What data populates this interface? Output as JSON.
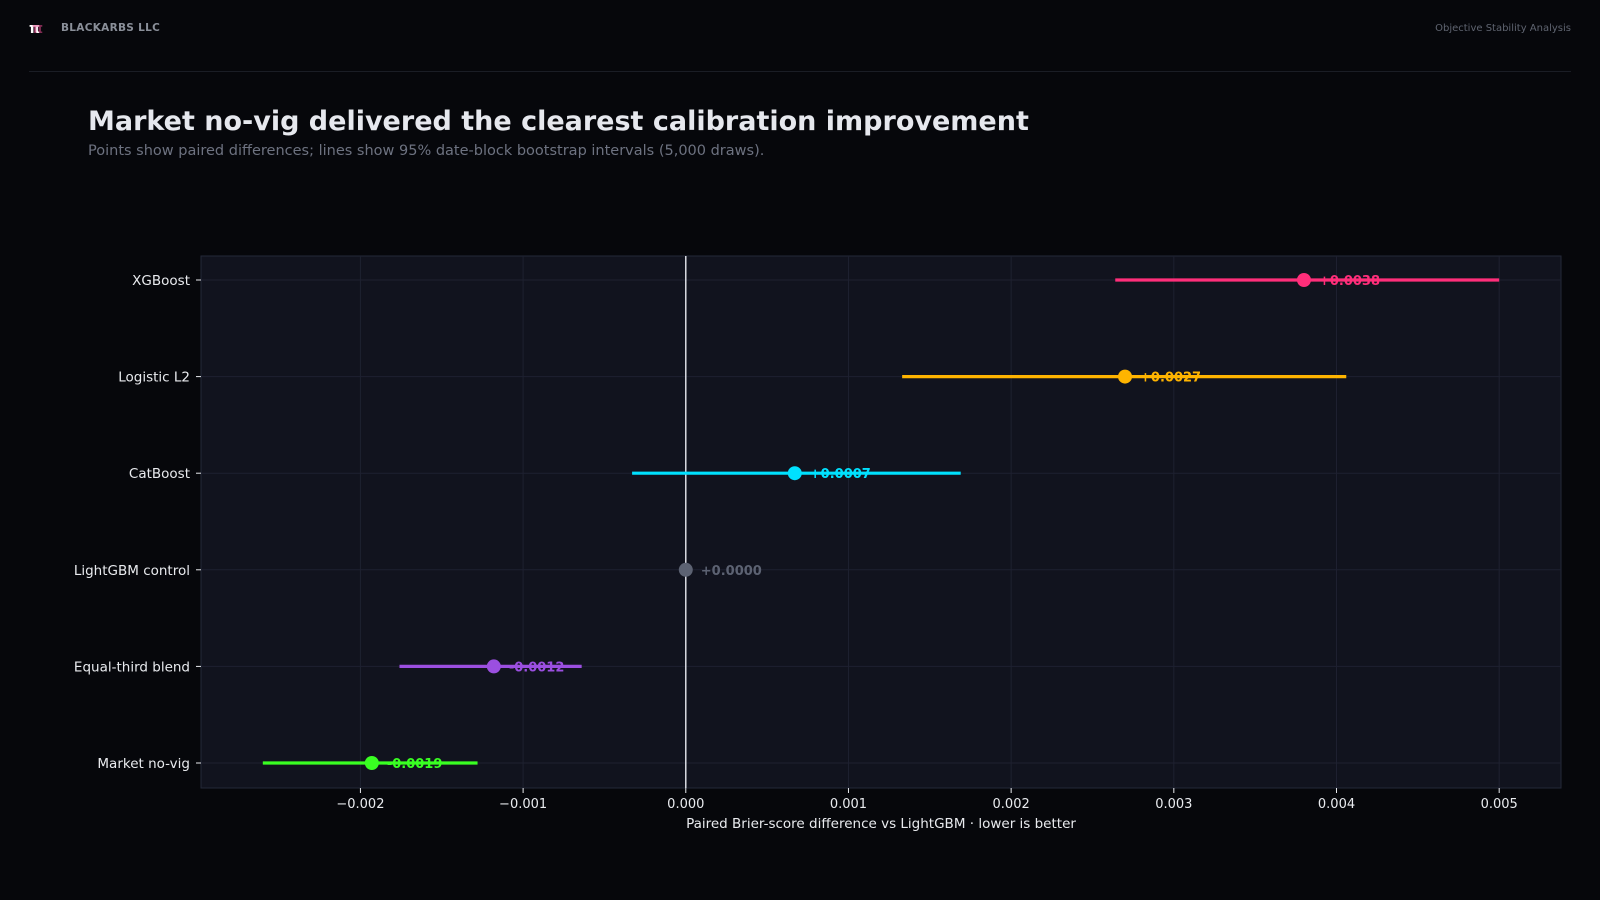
{
  "header": {
    "logo_glyph": "π",
    "company": "BLACKARBS LLC",
    "report_name": "Objective Stability Analysis"
  },
  "title": "Market no-vig delivered the clearest calibration improvement",
  "subtitle": "Points show paired differences; lines show 95% date-block bootstrap intervals (5,000 draws).",
  "colors": {
    "background": "#06070b",
    "plot_background": "#11131e",
    "grid": "#1e2130",
    "zero_line": "#e6e8ee"
  },
  "chart_data": {
    "type": "forest",
    "xlabel": "Paired Brier-score difference vs LightGBM  ·  lower is better",
    "xlim": [
      -0.00298,
      0.00538
    ],
    "xticks": [
      -0.002,
      -0.001,
      0.0,
      0.001,
      0.002,
      0.003,
      0.004,
      0.005
    ],
    "xtick_labels": [
      "−0.002",
      "−0.001",
      "0.000",
      "0.001",
      "0.002",
      "0.003",
      "0.004",
      "0.005"
    ],
    "reference_line": 0.0,
    "grid": true,
    "rows": [
      {
        "name": "XGBoost",
        "value": 0.0038,
        "ci_low": 0.00264,
        "ci_high": 0.005,
        "label": "+0.0038",
        "color": "#ff2e7a"
      },
      {
        "name": "Logistic L2",
        "value": 0.0027,
        "ci_low": 0.00133,
        "ci_high": 0.00406,
        "label": "+0.0027",
        "color": "#ffb400"
      },
      {
        "name": "CatBoost",
        "value": 0.00067,
        "ci_low": -0.00033,
        "ci_high": 0.00169,
        "label": "+0.0007",
        "color": "#00e1ff"
      },
      {
        "name": "LightGBM control",
        "value": 0.0,
        "ci_low": null,
        "ci_high": null,
        "label": "+0.0000",
        "color": "#5c6272"
      },
      {
        "name": "Equal-third blend",
        "value": -0.00118,
        "ci_low": -0.00176,
        "ci_high": -0.00064,
        "label": "-0.0012",
        "color": "#9b4fe0"
      },
      {
        "name": "Market no-vig",
        "value": -0.00193,
        "ci_low": -0.0026,
        "ci_high": -0.00128,
        "label": "-0.0019",
        "color": "#39ff22"
      }
    ]
  }
}
